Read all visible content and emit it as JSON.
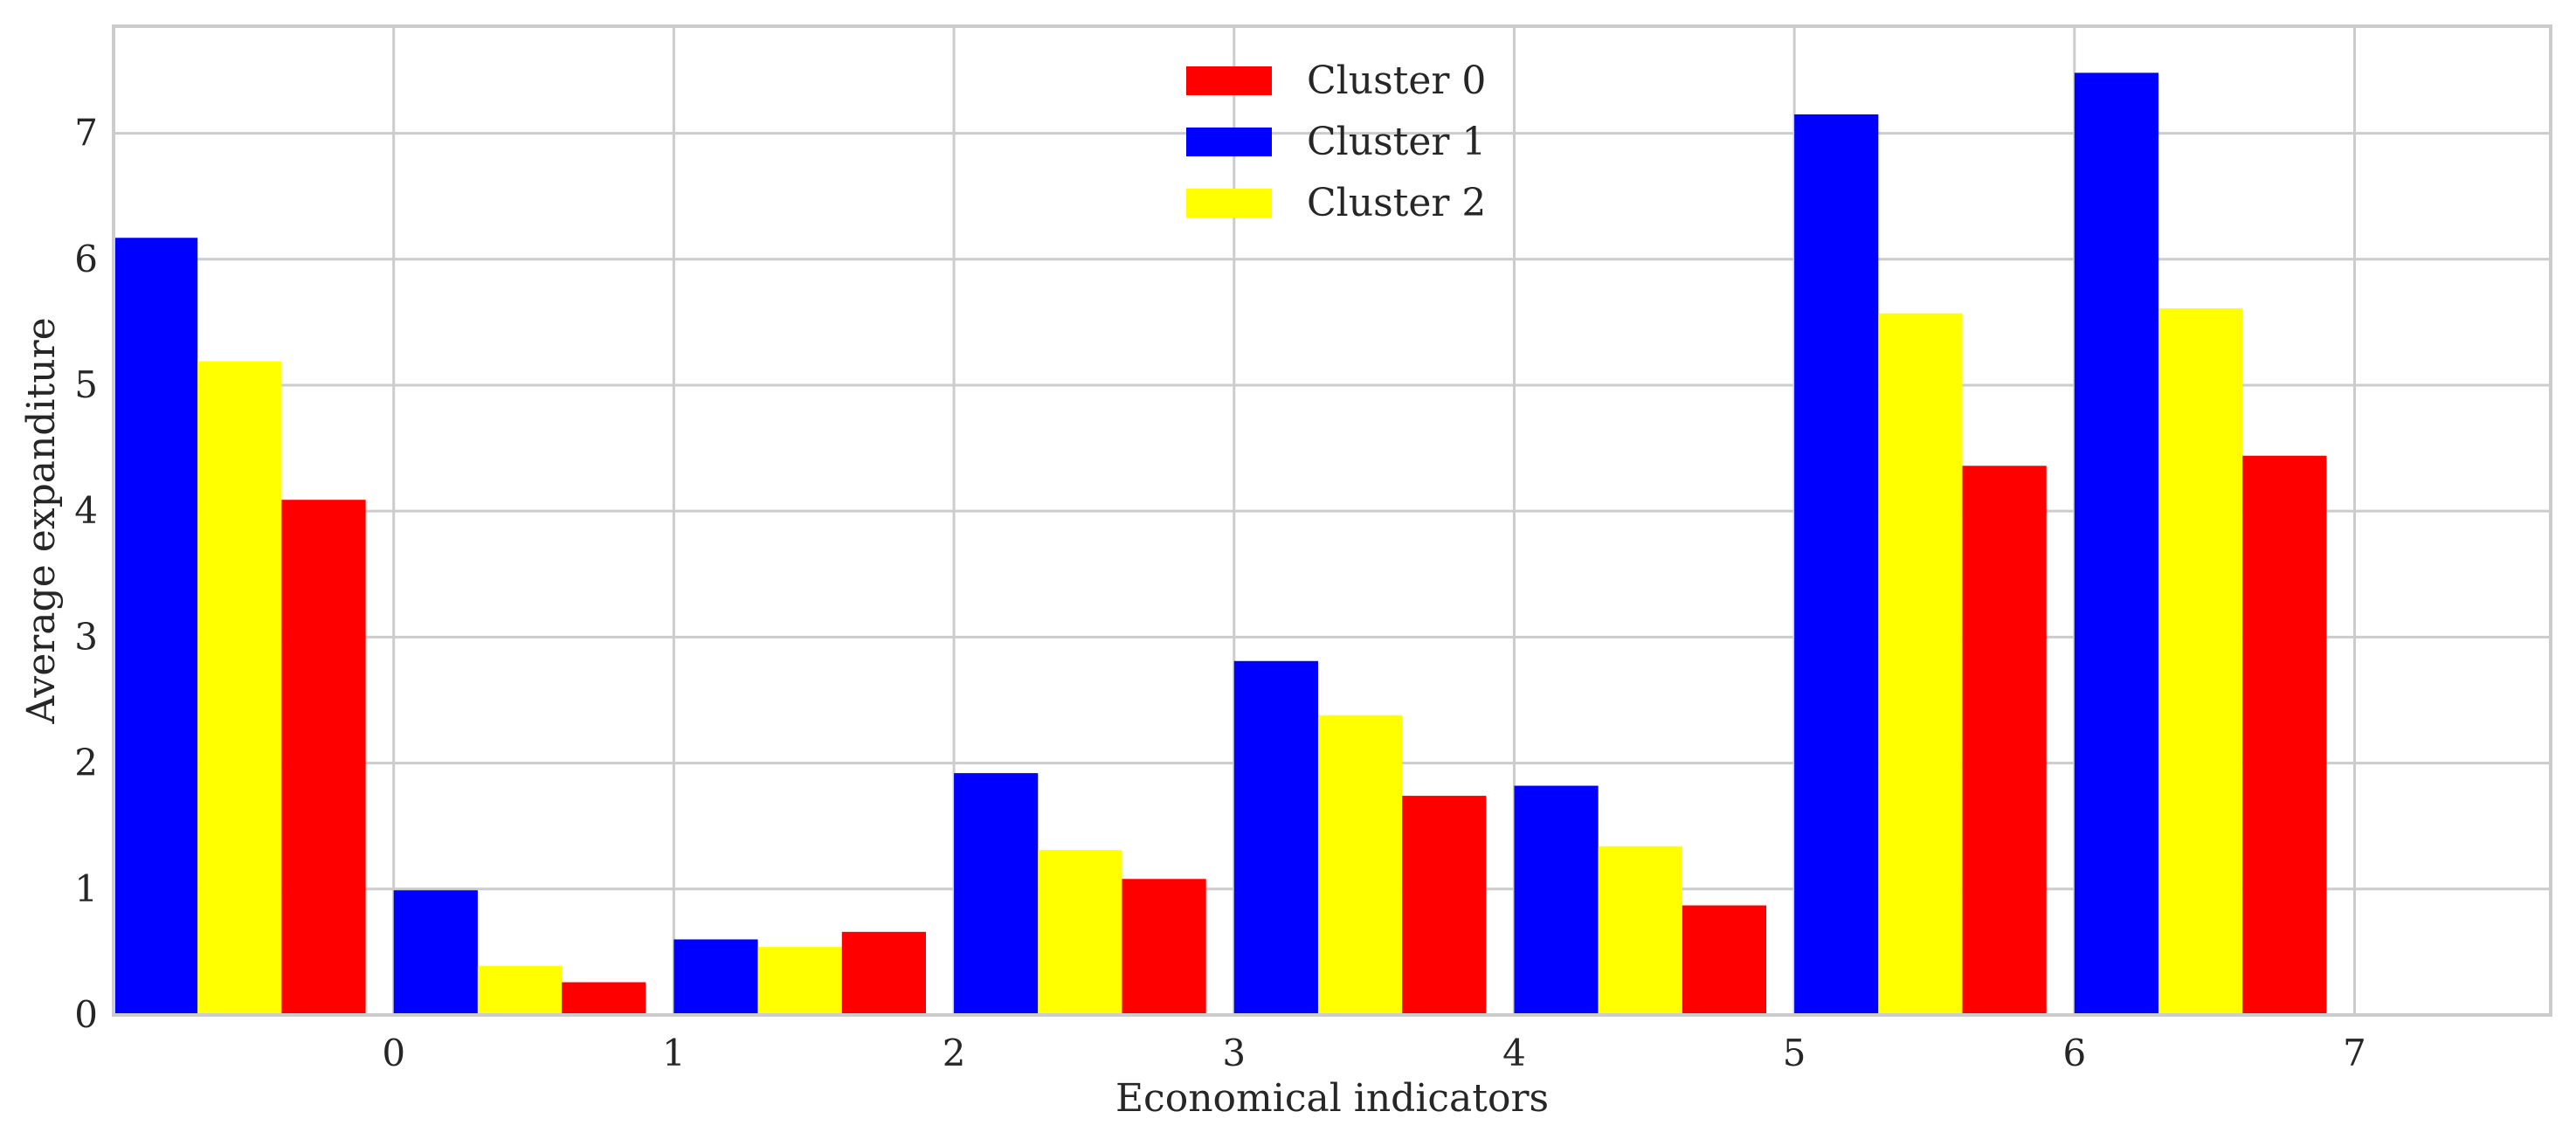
{
  "chart_data": {
    "type": "bar",
    "title": "",
    "xlabel": "Economical indicators",
    "ylabel": "Average expanditure",
    "categories": [
      "0",
      "1",
      "2",
      "3",
      "4",
      "5",
      "6",
      "7"
    ],
    "xlim": [
      -1.0,
      7.7
    ],
    "ylim": [
      0,
      7.85
    ],
    "yticks": [
      "0",
      "1",
      "2",
      "3",
      "4",
      "5",
      "6",
      "7"
    ],
    "grid": true,
    "legend_position": "top-center",
    "series": [
      {
        "name": "Cluster 1",
        "color": "#0000ff",
        "values": [
          6.17,
          0.99,
          0.6,
          1.92,
          2.81,
          1.82,
          7.15,
          7.48
        ]
      },
      {
        "name": "Cluster 2",
        "color": "#ffff00",
        "values": [
          5.19,
          0.39,
          0.54,
          1.31,
          2.38,
          1.34,
          5.57,
          5.61
        ]
      },
      {
        "name": "Cluster 0",
        "color": "#ff0000",
        "values": [
          4.09,
          0.26,
          0.66,
          1.08,
          1.74,
          0.87,
          4.36,
          4.44
        ]
      }
    ],
    "legend_order": [
      "Cluster 0",
      "Cluster 1",
      "Cluster 2"
    ]
  }
}
